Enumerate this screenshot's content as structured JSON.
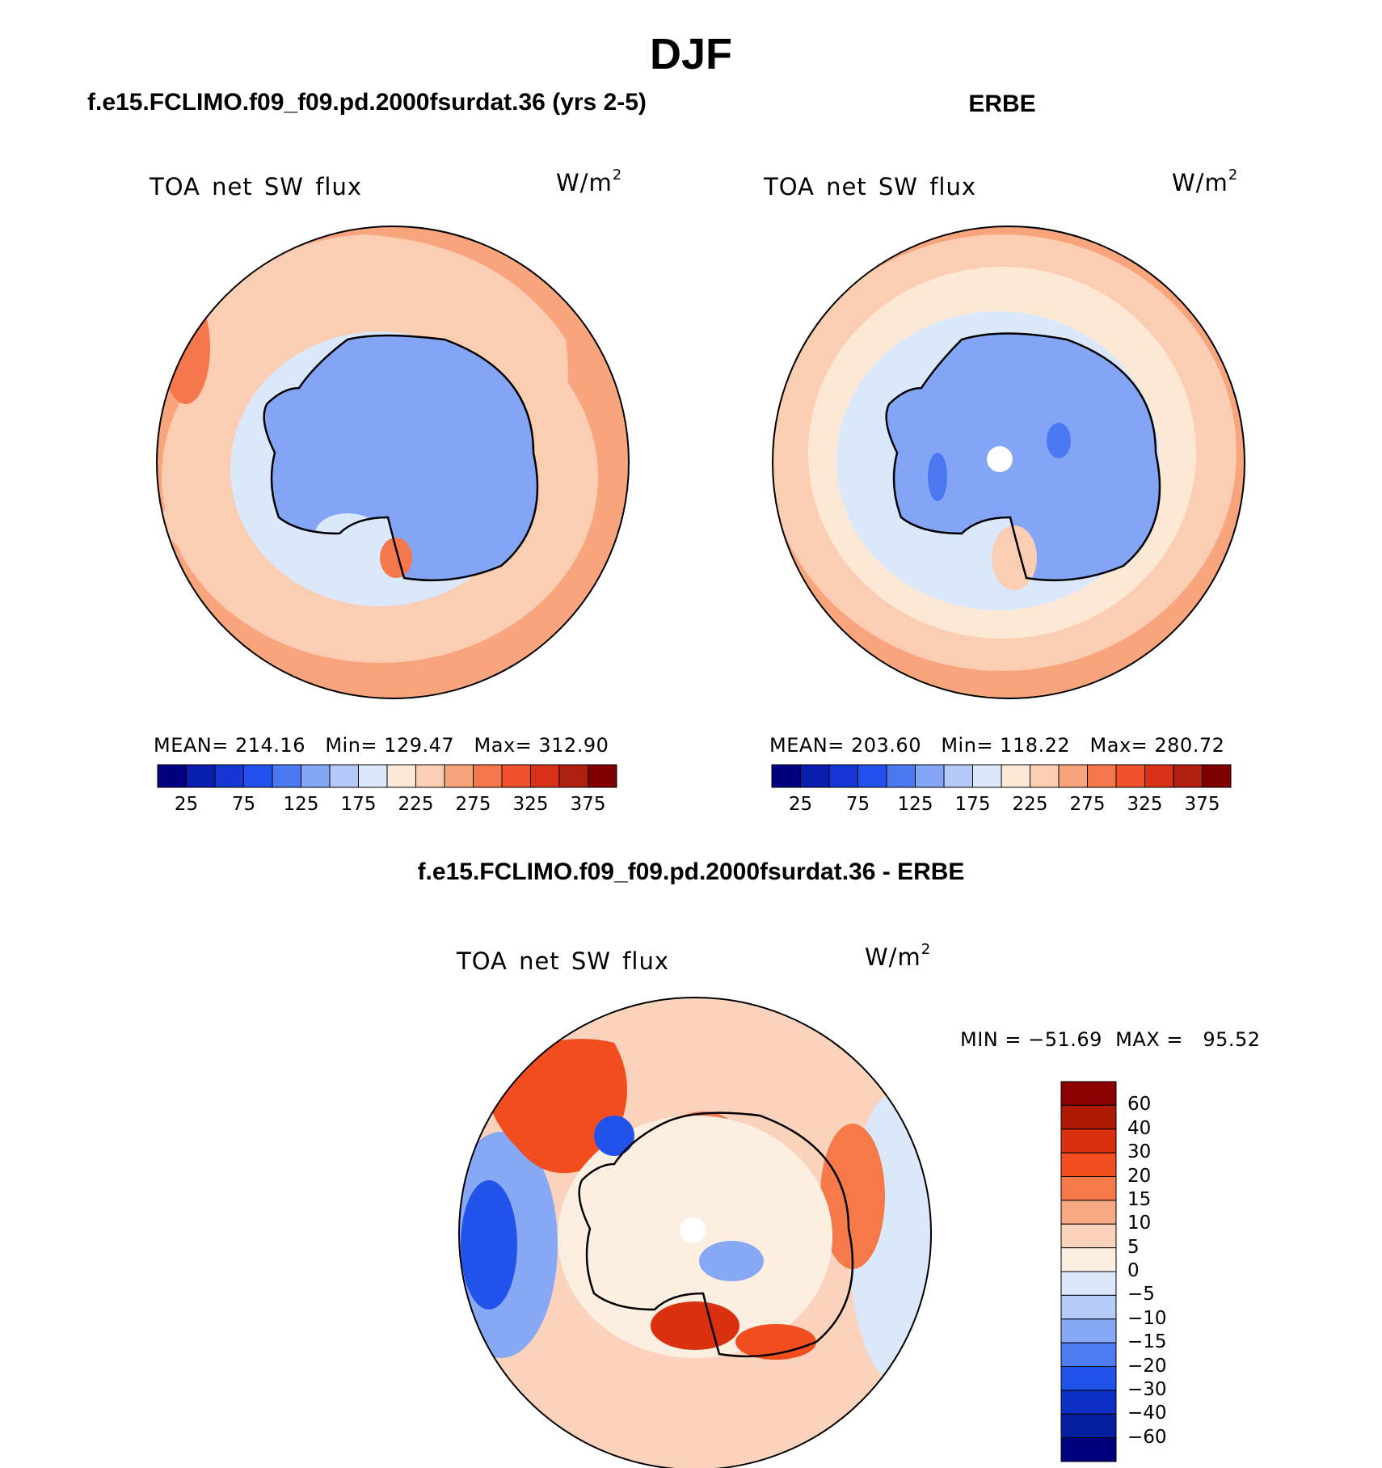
{
  "figure": {
    "main_title": "DJF",
    "left_title": "f.e15.FCLIMO.f09_f09.pd.2000fsurdat.36 (yrs 2-5)",
    "right_title": "ERBE",
    "diff_title": "f.e15.FCLIMO.f09_f09.pd.2000fsurdat.36 - ERBE"
  },
  "panels": {
    "model": {
      "variable": "TOA net SW flux",
      "units_base": "W/m",
      "units_exp": "2",
      "stats": "MEAN= 214.16   Min= 129.47   Max= 312.90"
    },
    "obs": {
      "variable": "TOA net SW flux",
      "units_base": "W/m",
      "units_exp": "2",
      "stats": "MEAN= 203.60   Min= 118.22   Max= 280.72"
    },
    "diff": {
      "variable": "TOA net SW flux",
      "units_base": "W/m",
      "units_exp": "2",
      "stats": "MIN = −51.69  MAX =   95.52"
    }
  },
  "chart_data": [
    {
      "type": "heatmap",
      "title": "f.e15.FCLIMO.f09_f09.pd.2000fsurdat.36 (yrs 2-5)",
      "projection": "south-polar stereographic",
      "variable": "TOA net SW flux",
      "units": "W/m2",
      "mean": 214.16,
      "min": 129.47,
      "max": 312.9,
      "colorbar_ticks": [
        "25",
        "75",
        "125",
        "175",
        "225",
        "275",
        "325",
        "375"
      ],
      "colorbar_colors": [
        "#00007f",
        "#0a1fb0",
        "#1436d4",
        "#2150ec",
        "#4a78f0",
        "#84a5f5",
        "#b3c9f8",
        "#dbe8fb",
        "#fde8d6",
        "#fbcdb2",
        "#f8a47d",
        "#f4784c",
        "#f0502a",
        "#d9301a",
        "#b0200f",
        "#7f0000"
      ]
    },
    {
      "type": "heatmap",
      "title": "ERBE",
      "projection": "south-polar stereographic",
      "variable": "TOA net SW flux",
      "units": "W/m2",
      "mean": 203.6,
      "min": 118.22,
      "max": 280.72,
      "colorbar_ticks": [
        "25",
        "75",
        "125",
        "175",
        "225",
        "275",
        "325",
        "375"
      ],
      "colorbar_colors": [
        "#00007f",
        "#0a1fb0",
        "#1436d4",
        "#2150ec",
        "#4a78f0",
        "#84a5f5",
        "#b3c9f8",
        "#dbe8fb",
        "#fde8d6",
        "#fbcdb2",
        "#f8a47d",
        "#f4784c",
        "#f0502a",
        "#d9301a",
        "#b0200f",
        "#7f0000"
      ]
    },
    {
      "type": "heatmap",
      "title": "f.e15.FCLIMO.f09_f09.pd.2000fsurdat.36 - ERBE",
      "projection": "south-polar stereographic",
      "variable": "TOA net SW flux",
      "units": "W/m2",
      "min": -51.69,
      "max": 95.52,
      "colorbar_ticks": [
        "60",
        "40",
        "30",
        "20",
        "15",
        "10",
        "5",
        "0",
        "−5",
        "−10",
        "−15",
        "−20",
        "−30",
        "−40",
        "−60"
      ],
      "colorbar_colors": [
        "#8b0000",
        "#b01a05",
        "#d9300f",
        "#f24d1f",
        "#f6794a",
        "#f8a883",
        "#fbd2bc",
        "#fdeee2",
        "#dbe8fb",
        "#b5ccf8",
        "#86a8f5",
        "#4d7df2",
        "#2152ea",
        "#0d30c4",
        "#081ea0",
        "#00007f"
      ]
    }
  ]
}
